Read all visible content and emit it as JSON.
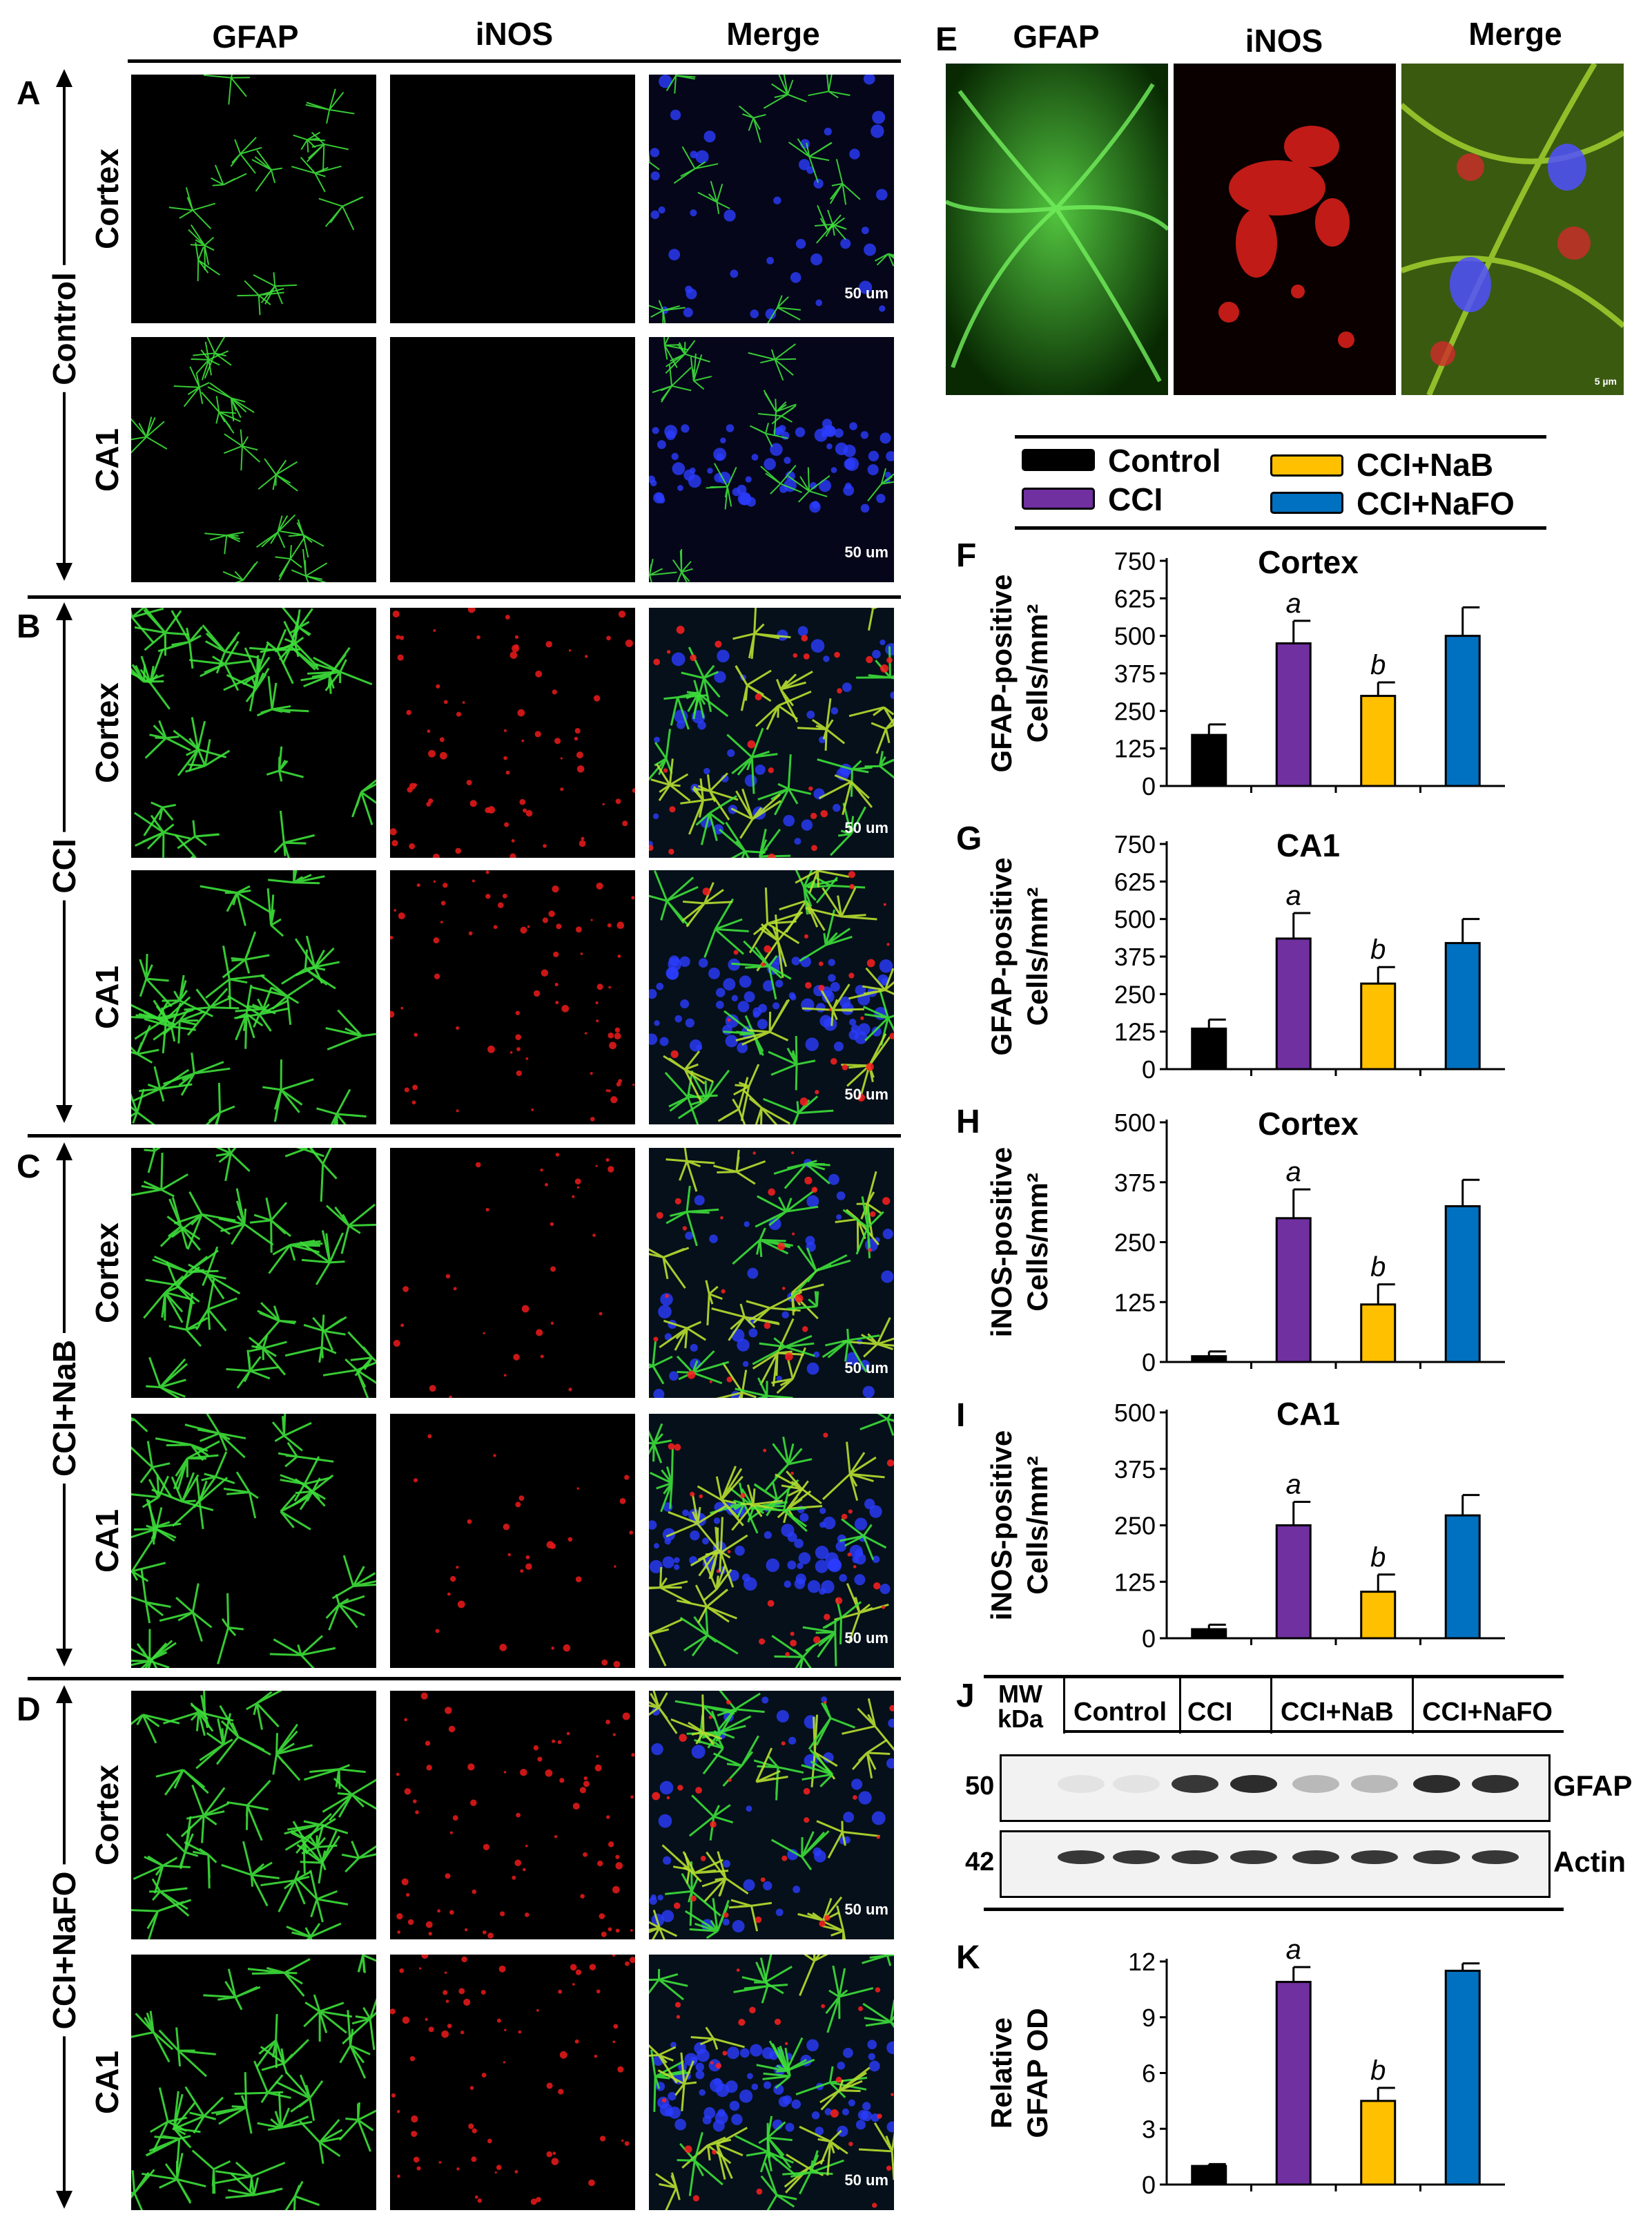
{
  "left_panel": {
    "col_headers": [
      "GFAP",
      "iNOS",
      "Merge"
    ],
    "groups": [
      {
        "letter": "A",
        "group": "Control",
        "rows": [
          "Cortex",
          "CA1"
        ]
      },
      {
        "letter": "B",
        "group": "CCI",
        "rows": [
          "Cortex",
          "CA1"
        ]
      },
      {
        "letter": "C",
        "group": "CCI+NaB",
        "rows": [
          "Cortex",
          "CA1"
        ]
      },
      {
        "letter": "D",
        "group": "CCI+NaFO",
        "rows": [
          "Cortex",
          "CA1"
        ]
      }
    ],
    "scale_bar": "50 um"
  },
  "panel_e": {
    "letter": "E",
    "col_headers": [
      "GFAP",
      "iNOS",
      "Merge"
    ],
    "scale_bar": "5 µm"
  },
  "legend": {
    "items": [
      {
        "label": "Control",
        "color": "#000000"
      },
      {
        "label": "CCI",
        "color": "#7030a0"
      },
      {
        "label": "CCI+NaB",
        "color": "#ffc000"
      },
      {
        "label": "CCI+NaFO",
        "color": "#0070c0"
      }
    ]
  },
  "chart_data": [
    {
      "letter": "F",
      "type": "bar",
      "title": "Cortex",
      "ylabel_line1": "GFAP-positive",
      "ylabel_line2": "Cells/mm²",
      "categories": [
        "Control",
        "CCI",
        "CCI+NaB",
        "CCI+NaFO"
      ],
      "values": [
        170,
        475,
        300,
        500
      ],
      "errors": [
        35,
        75,
        45,
        95
      ],
      "sig": [
        "",
        "a",
        "b",
        ""
      ],
      "ylim": [
        0,
        750
      ],
      "yticks": [
        "0",
        "125",
        "250",
        "375",
        "500",
        "625",
        "750"
      ]
    },
    {
      "letter": "G",
      "type": "bar",
      "title": "CA1",
      "ylabel_line1": "GFAP-positive",
      "ylabel_line2": "Cells/mm²",
      "categories": [
        "Control",
        "CCI",
        "CCI+NaB",
        "CCI+NaFO"
      ],
      "values": [
        135,
        435,
        285,
        420
      ],
      "errors": [
        30,
        85,
        55,
        80
      ],
      "sig": [
        "",
        "a",
        "b",
        ""
      ],
      "ylim": [
        0,
        750
      ],
      "yticks": [
        "0",
        "125",
        "250",
        "375",
        "500",
        "625",
        "750"
      ]
    },
    {
      "letter": "H",
      "type": "bar",
      "title": "Cortex",
      "ylabel_line1": "iNOS-positive",
      "ylabel_line2": "Cells/mm²",
      "categories": [
        "Control",
        "CCI",
        "CCI+NaB",
        "CCI+NaFO"
      ],
      "values": [
        12,
        300,
        120,
        325
      ],
      "errors": [
        10,
        60,
        42,
        55
      ],
      "sig": [
        "",
        "a",
        "b",
        ""
      ],
      "ylim": [
        0,
        500
      ],
      "yticks": [
        "0",
        "125",
        "250",
        "375",
        "500"
      ]
    },
    {
      "letter": "I",
      "type": "bar",
      "title": "CA1",
      "ylabel_line1": "iNOS-positive",
      "ylabel_line2": "Cells/mm²",
      "categories": [
        "Control",
        "CCI",
        "CCI+NaB",
        "CCI+NaFO"
      ],
      "values": [
        20,
        250,
        103,
        272
      ],
      "errors": [
        10,
        52,
        38,
        45
      ],
      "sig": [
        "",
        "a",
        "b",
        ""
      ],
      "ylim": [
        0,
        500
      ],
      "yticks": [
        "0",
        "125",
        "250",
        "375",
        "500"
      ]
    },
    {
      "letter": "K",
      "type": "bar",
      "title": "",
      "ylabel_line1": "Relative",
      "ylabel_line2": "GFAP OD",
      "categories": [
        "Control",
        "CCI",
        "CCI+NaB",
        "CCI+NaFO"
      ],
      "values": [
        1.0,
        10.9,
        4.5,
        11.5
      ],
      "errors": [
        0.1,
        0.8,
        0.7,
        0.4
      ],
      "sig": [
        "",
        "a",
        "b",
        ""
      ],
      "ylim": [
        0,
        12
      ],
      "yticks": [
        "0",
        "3",
        "6",
        "9",
        "12"
      ]
    }
  ],
  "blot": {
    "letter": "J",
    "mw_label_line1": "MW",
    "mw_label_line2": "kDa",
    "lanes": [
      "Control",
      "CCI",
      "CCI+NaB",
      "CCI+NaFO"
    ],
    "rows": [
      {
        "mw": "50",
        "protein": "GFAP",
        "intensities": [
          0.12,
          0.12,
          0.85,
          0.9,
          0.3,
          0.3,
          0.9,
          0.88
        ]
      },
      {
        "mw": "42",
        "protein": "Actin",
        "intensities": [
          0.85,
          0.85,
          0.85,
          0.85,
          0.85,
          0.85,
          0.85,
          0.85
        ]
      }
    ]
  }
}
